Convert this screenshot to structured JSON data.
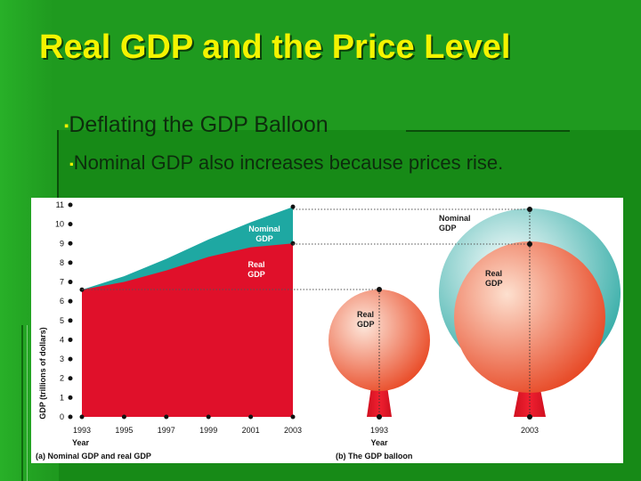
{
  "slide": {
    "title": "Real GDP and the Price Level",
    "bullet1": "Deflating the GDP Balloon",
    "bullet2": "Nominal GDP also increases because prices rise.",
    "bullet_marker": "▪"
  },
  "figure": {
    "panel_a": {
      "caption": "(a) Nominal GDP and real GDP",
      "ylabel": "GDP (trillions of dollars)",
      "xlabel": "Year",
      "nominal_label": [
        "Nominal",
        "GDP"
      ],
      "real_label": [
        "Real",
        "GDP"
      ]
    },
    "panel_b": {
      "caption": "(b) The GDP balloon",
      "xlabel": "Year",
      "small_balloon_label": [
        "Real",
        "GDP"
      ],
      "big_real_label": [
        "Real",
        "GDP"
      ],
      "big_nominal_label": [
        "Nominal",
        "GDP"
      ],
      "year_small": "1993",
      "year_big": "2003"
    },
    "colors": {
      "real": "#e0102a",
      "nominal": "#1ea8a2",
      "balloon_light": "#fde0d0",
      "balloon_dark": "#e83a1c"
    }
  },
  "chart_data": {
    "type": "area",
    "title": "",
    "xlabel": "Year",
    "ylabel": "GDP (trillions of dollars)",
    "x": [
      1993,
      1995,
      1997,
      1999,
      2001,
      2003
    ],
    "ylim": [
      0,
      11
    ],
    "yticks": [
      0,
      1,
      2,
      3,
      4,
      5,
      6,
      7,
      8,
      9,
      10,
      11
    ],
    "xticks": [
      "1993",
      "1995",
      "1997",
      "1999",
      "2001",
      "2003"
    ],
    "series": [
      {
        "name": "Nominal GDP",
        "values": [
          6.6,
          7.3,
          8.2,
          9.2,
          10.1,
          10.9
        ]
      },
      {
        "name": "Real GDP",
        "values": [
          6.6,
          7.0,
          7.6,
          8.3,
          8.8,
          9.0
        ]
      }
    ],
    "grid": false
  }
}
